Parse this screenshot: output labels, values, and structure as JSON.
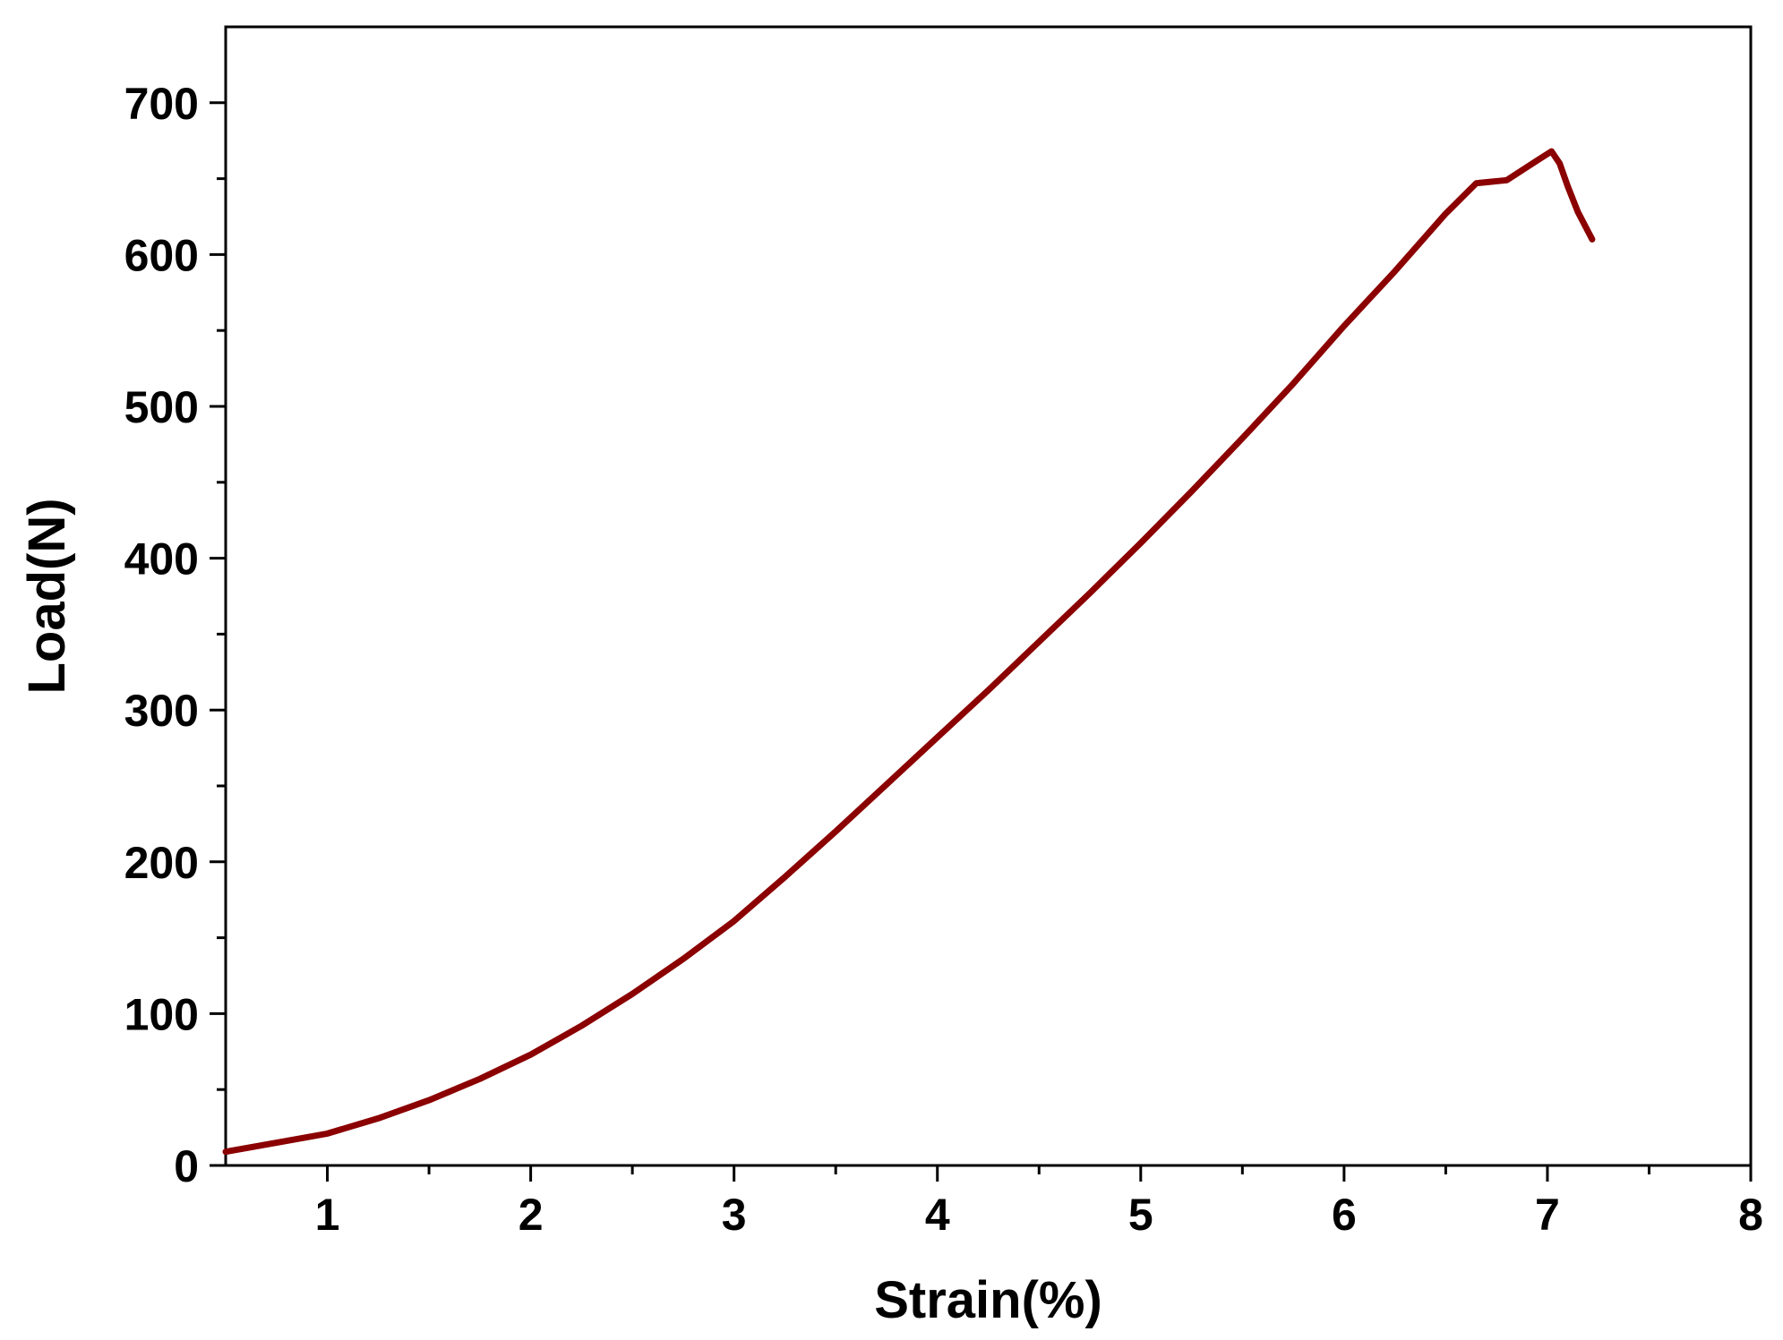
{
  "chart_data": {
    "type": "line",
    "title": "",
    "xlabel": "Strain(%)",
    "ylabel": "Load(N)",
    "xlim": [
      0.5,
      8
    ],
    "ylim": [
      0,
      750
    ],
    "grid": false,
    "legend": "none",
    "x_ticks": [
      1,
      2,
      3,
      4,
      5,
      6,
      7,
      8
    ],
    "x_tick_labels": [
      "1",
      "2",
      "3",
      "4",
      "5",
      "6",
      "7",
      "8"
    ],
    "x_minor_ticks": [
      1.5,
      2.5,
      3.5,
      4.5,
      5.5,
      6.5,
      7.5
    ],
    "y_ticks": [
      0,
      100,
      200,
      300,
      400,
      500,
      600,
      700
    ],
    "y_tick_labels": [
      "0",
      "100",
      "200",
      "300",
      "400",
      "500",
      "600",
      "700"
    ],
    "y_minor_ticks": [
      50,
      150,
      250,
      350,
      450,
      550,
      650
    ],
    "series": [
      {
        "color": "#8b0000",
        "x": [
          0.5,
          0.75,
          1.0,
          1.25,
          1.5,
          1.75,
          2.0,
          2.25,
          2.5,
          2.75,
          3.0,
          3.25,
          3.5,
          3.75,
          4.0,
          4.25,
          4.5,
          4.75,
          5.0,
          5.25,
          5.5,
          5.75,
          6.0,
          6.25,
          6.5,
          6.65,
          6.8,
          6.95,
          7.02,
          7.06,
          7.1,
          7.15,
          7.22
        ],
        "y": [
          9,
          15,
          21,
          31,
          43,
          57,
          73,
          92,
          113,
          136,
          161,
          190,
          220,
          251,
          282,
          313,
          345,
          377,
          410,
          444,
          479,
          515,
          553,
          589,
          627,
          647,
          649,
          662,
          668,
          660,
          645,
          628,
          610
        ]
      }
    ]
  }
}
